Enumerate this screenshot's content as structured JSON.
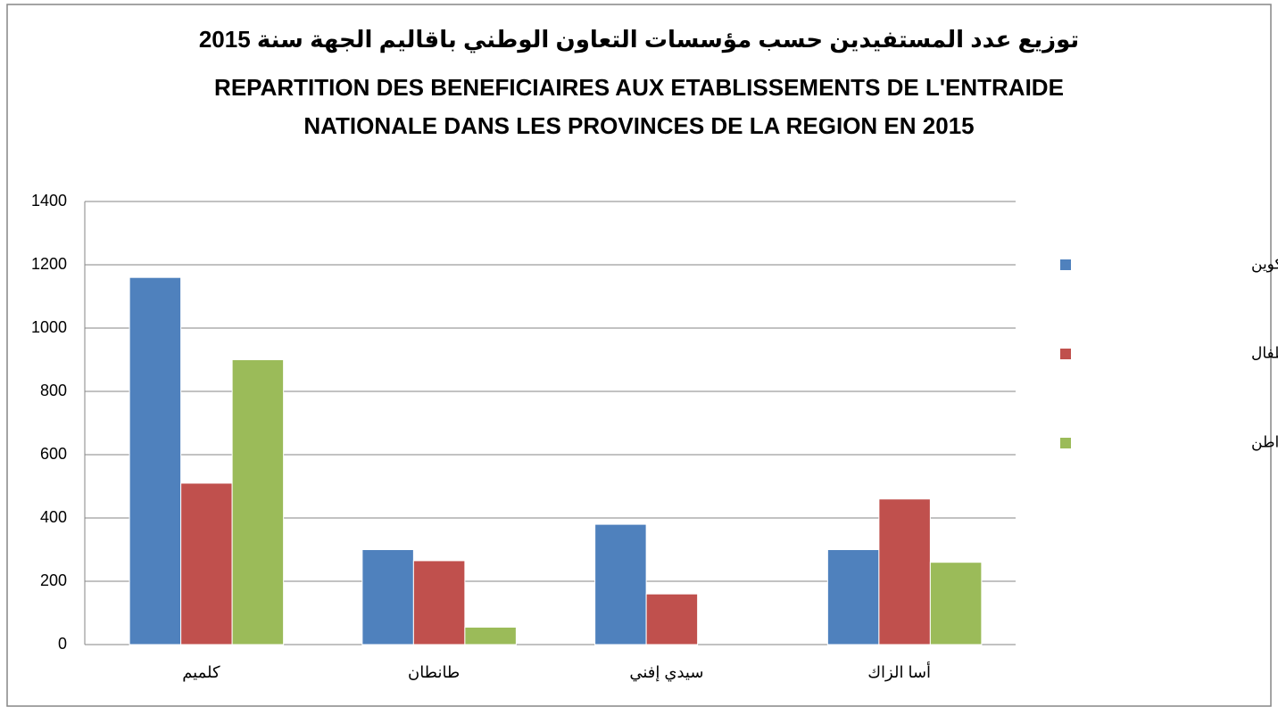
{
  "chart_data": {
    "type": "bar",
    "title": [
      "توزيع عدد المستفيدين حسب مؤسسات التعاون الوطني باقاليم الجهة  سنة 2015",
      "REPARTITION DES BENEFICIAIRES AUX ETABLISSEMENTS DE L'ENTRAIDE",
      "NATIONALE DANS LES PROVINCES  DE LA REGION   EN 2015"
    ],
    "categories": [
      "كلميم",
      "طانطان",
      "سيدي إفني",
      "أسا الزاك"
    ],
    "series": [
      {
        "name": "مراكز التربية والتكوين",
        "color": "#4f81bd",
        "values": [
          1160,
          300,
          380,
          300
        ]
      },
      {
        "name": "رياض الأطفال",
        "color": "#c0504d",
        "values": [
          510,
          265,
          160,
          460
        ]
      },
      {
        "name": "دار الواطن",
        "color": "#9bbb59",
        "values": [
          900,
          55,
          0,
          260
        ]
      }
    ],
    "ylim": [
      0,
      1400
    ],
    "yticks": [
      0,
      200,
      400,
      600,
      800,
      1000,
      1200,
      1400
    ],
    "grid": true,
    "legend": "right"
  }
}
